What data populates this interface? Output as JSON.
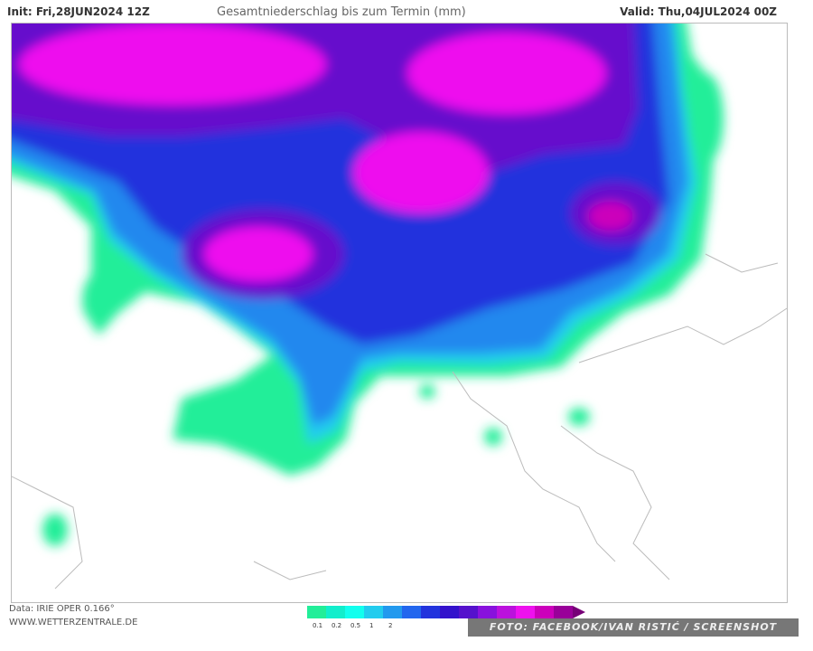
{
  "header": {
    "run": "Init: Fri,28JUN2024 12Z",
    "title": "Gesamtniederschlag bis zum Termin (mm)",
    "valid": "Valid: Thu,04JUL2024 00Z"
  },
  "footer": {
    "data": "Data: IRIE OPER 0.166°",
    "site": "WWW.WETTERZENTRALE.DE",
    "credit": "FOTO: FACEBOOK/IVAN RISTIĆ / SCREENSHOT"
  },
  "legend": {
    "ticks": [
      "0.1",
      "0.2",
      "0.5",
      "1",
      "2"
    ],
    "colors": [
      "#22ee99",
      "#11eecc",
      "#11ffee",
      "#22ccee",
      "#2299ee",
      "#2266ee",
      "#2233dd",
      "#3311cc",
      "#5511cc",
      "#8811dd",
      "#bb11dd",
      "#ee11ee",
      "#cc00bb",
      "#990099"
    ],
    "arrow": "#770077"
  }
}
